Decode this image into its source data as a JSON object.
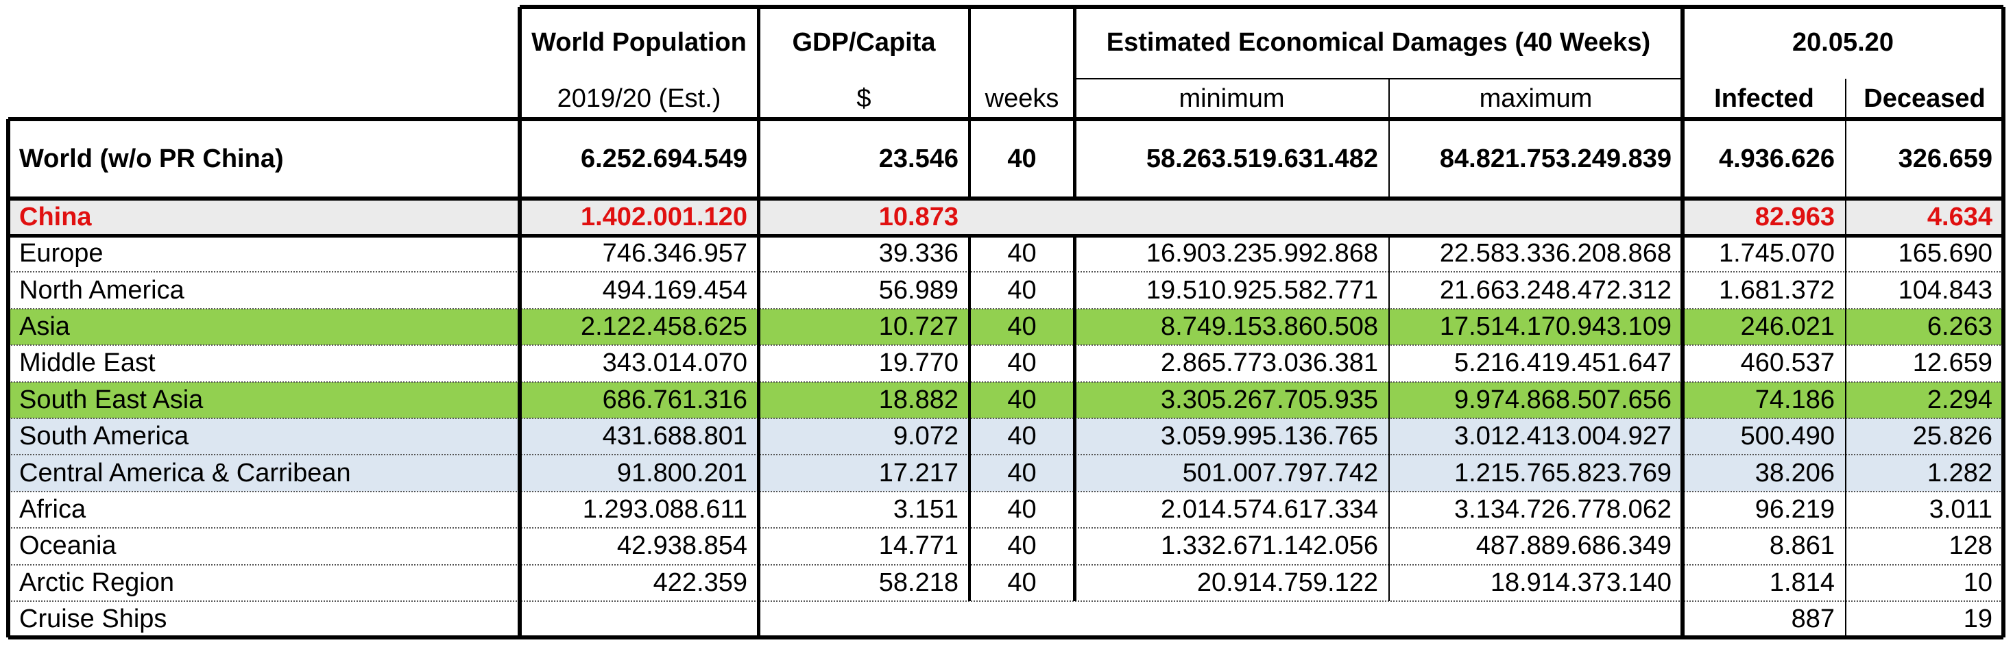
{
  "header": {
    "world_population": "World Population",
    "population_year": "2019/20 (Est.)",
    "gdp_capita": "GDP/Capita",
    "gdp_unit": "$",
    "weeks": "weeks",
    "damages": "Estimated Economical Damages (40 Weeks)",
    "minimum": "minimum",
    "maximum": "maximum",
    "date": "20.05.20",
    "infected": "Infected",
    "deceased": "Deceased"
  },
  "world": {
    "name": "World (w/o PR China)",
    "population": "6.252.694.549",
    "gdp": "23.546",
    "weeks": "40",
    "min": "58.263.519.631.482",
    "max": "84.821.753.249.839",
    "infected": "4.936.626",
    "deceased": "326.659"
  },
  "china": {
    "name": "China",
    "population": "1.402.001.120",
    "gdp": "10.873",
    "infected": "82.963",
    "deceased": "4.634",
    "color": "#e01010"
  },
  "regions": [
    {
      "name": "Europe",
      "population": "746.346.957",
      "gdp": "39.336",
      "weeks": "40",
      "min": "16.903.235.992.868",
      "max": "22.583.336.208.868",
      "infected": "1.745.070",
      "deceased": "165.690"
    },
    {
      "name": "North America",
      "population": "494.169.454",
      "gdp": "56.989",
      "weeks": "40",
      "min": "19.510.925.582.771",
      "max": "21.663.248.472.312",
      "infected": "1.681.372",
      "deceased": "104.843"
    },
    {
      "name": "Asia",
      "population": "2.122.458.625",
      "gdp": "10.727",
      "weeks": "40",
      "min": "8.749.153.860.508",
      "max": "17.514.170.943.109",
      "infected": "246.021",
      "deceased": "6.263"
    },
    {
      "name": "Middle East",
      "population": "343.014.070",
      "gdp": "19.770",
      "weeks": "40",
      "min": "2.865.773.036.381",
      "max": "5.216.419.451.647",
      "infected": "460.537",
      "deceased": "12.659"
    },
    {
      "name": "South East Asia",
      "population": "686.761.316",
      "gdp": "18.882",
      "weeks": "40",
      "min": "3.305.267.705.935",
      "max": "9.974.868.507.656",
      "infected": "74.186",
      "deceased": "2.294"
    },
    {
      "name": "South America",
      "population": "431.688.801",
      "gdp": "9.072",
      "weeks": "40",
      "min": "3.059.995.136.765",
      "max": "3.012.413.004.927",
      "infected": "500.490",
      "deceased": "25.826"
    },
    {
      "name": "Central America & Carribean",
      "population": "91.800.201",
      "gdp": "17.217",
      "weeks": "40",
      "min": "501.007.797.742",
      "max": "1.215.765.823.769",
      "infected": "38.206",
      "deceased": "1.282"
    },
    {
      "name": "Africa",
      "population": "1.293.088.611",
      "gdp": "3.151",
      "weeks": "40",
      "min": "2.014.574.617.334",
      "max": "3.134.726.778.062",
      "infected": "96.219",
      "deceased": "3.011"
    },
    {
      "name": "Oceania",
      "population": "42.938.854",
      "gdp": "14.771",
      "weeks": "40",
      "min": "1.332.671.142.056",
      "max": "487.889.686.349",
      "infected": "8.861",
      "deceased": "128"
    },
    {
      "name": "Arctic Region",
      "population": "422.359",
      "gdp": "58.218",
      "weeks": "40",
      "min": "20.914.759.122",
      "max": "18.914.373.140",
      "infected": "1.814",
      "deceased": "10"
    }
  ],
  "cruise": {
    "name": "Cruise Ships",
    "infected": "887",
    "deceased": "19"
  },
  "colors": {
    "highlight_green": "#92d050",
    "highlight_blue": "#dce6f1",
    "china_row_bg": "#ebebeb"
  }
}
